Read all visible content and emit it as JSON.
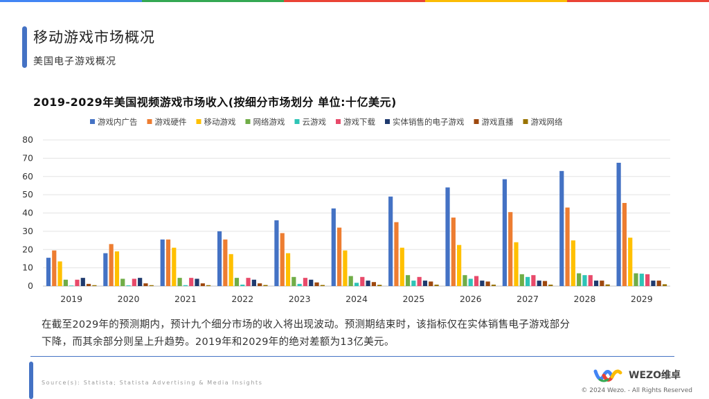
{
  "top_bar_colors": [
    "#4285f4",
    "#34a853",
    "#ea4335",
    "#fbbc05",
    "#ea4335"
  ],
  "header": {
    "title": "移动游戏市场概况",
    "subtitle": "美国电子游戏概况"
  },
  "chart_title": "2019-2029年美国视频游戏市场收入(按细分市场划分 单位:十亿美元)",
  "summary": {
    "line1": "在截至2029年的预测期内，预计九个细分市场的收入将出现波动。预测期结束时，该指标仅在实体销售电子游戏部分",
    "line2": "下降，而其余部分则呈上升趋势。2019年和2029年的绝对差额为13亿美元。"
  },
  "footer": {
    "source": "Source(s): Statista; Statista Advertising & Media Insights",
    "logo_text": "WEZO维卓",
    "copyright": "© 2024 Wezo. - All Rights Reserved"
  },
  "chart_data": {
    "type": "bar",
    "title": "2019-2029年美国视频游戏市场收入(按细分市场划分 单位:十亿美元)",
    "xlabel": "",
    "ylabel": "",
    "ylim": [
      0,
      80
    ],
    "yticks": [
      0,
      10,
      20,
      30,
      40,
      50,
      60,
      70,
      80
    ],
    "grid": true,
    "legend_position": "top",
    "categories": [
      "2019",
      "2020",
      "2021",
      "2022",
      "2023",
      "2024",
      "2025",
      "2026",
      "2027",
      "2028",
      "2029"
    ],
    "series": [
      {
        "name": "游戏内广告",
        "color": "#4472c4",
        "values": [
          15.5,
          18,
          25.5,
          30,
          36,
          42.5,
          49,
          54,
          58.5,
          63,
          67.5
        ]
      },
      {
        "name": "游戏硬件",
        "color": "#ed7d31",
        "values": [
          19.5,
          23,
          25.5,
          25.5,
          29,
          32,
          35,
          37.5,
          40.5,
          43,
          45.5
        ]
      },
      {
        "name": "移动游戏",
        "color": "#ffc000",
        "values": [
          13.5,
          19,
          21,
          17.5,
          18,
          19.5,
          21,
          22.5,
          24,
          25,
          26.5
        ]
      },
      {
        "name": "网络游戏",
        "color": "#70ad47",
        "values": [
          3.5,
          4,
          4.5,
          4.5,
          5,
          5.5,
          6,
          6,
          6.5,
          7,
          7
        ]
      },
      {
        "name": "云游戏",
        "color": "#2ec4b6",
        "values": [
          0.3,
          0.4,
          0.5,
          0.8,
          1.2,
          1.8,
          3,
          4,
          5,
          6,
          6.8
        ]
      },
      {
        "name": "游戏下载",
        "color": "#e84a6a",
        "values": [
          3.5,
          4,
          4.5,
          4.5,
          4.5,
          5,
          5,
          5.5,
          6,
          6,
          6.5
        ]
      },
      {
        "name": "实体销售的电子游戏",
        "color": "#1f3a6e",
        "values": [
          4.5,
          4.5,
          4,
          3.5,
          3.5,
          3,
          3,
          3,
          3,
          3,
          3
        ]
      },
      {
        "name": "游戏直播",
        "color": "#9e480e",
        "values": [
          1.2,
          1.5,
          1.5,
          1.5,
          2,
          2.2,
          2.5,
          2.5,
          2.8,
          3,
          3
        ]
      },
      {
        "name": "游戏网络",
        "color": "#997300",
        "values": [
          0.5,
          0.5,
          0.5,
          0.6,
          0.6,
          0.7,
          0.8,
          0.8,
          0.8,
          0.9,
          1
        ]
      }
    ]
  }
}
